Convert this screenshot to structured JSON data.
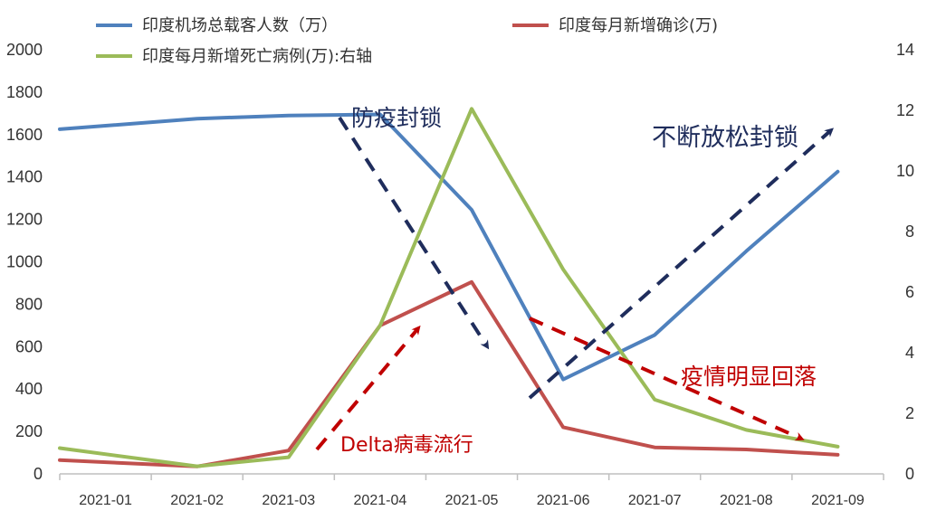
{
  "chart_data": {
    "type": "line",
    "categories": [
      "2021-01",
      "2021-02",
      "2021-03",
      "2021-04",
      "2021-05",
      "2021-06",
      "2021-07",
      "2021-08",
      "2021-09"
    ],
    "y_left": {
      "ylim": [
        0,
        2000
      ],
      "ticks": [
        "0",
        "200",
        "400",
        "600",
        "800",
        "1000",
        "1200",
        "1400",
        "1600",
        "1800",
        "2000"
      ]
    },
    "y_right": {
      "ylim": [
        0,
        14
      ],
      "ticks": [
        "0",
        "2",
        "4",
        "6",
        "8",
        "10",
        "12",
        "14"
      ]
    },
    "grid": false,
    "legend_position": "top",
    "series": [
      {
        "name": "印度机场总载客人数（万）",
        "axis": "left",
        "color": "#4F81BD",
        "values": [
          1625,
          1675,
          1690,
          1695,
          1245,
          445,
          655,
          1050,
          1425
        ]
      },
      {
        "name": "印度每月新增确诊(万)",
        "axis": "left",
        "color": "#C0504D",
        "values": [
          65,
          35,
          110,
          700,
          905,
          220,
          125,
          115,
          90
        ]
      },
      {
        "name": "印度每月新增死亡病例(万):右轴",
        "axis": "right",
        "color": "#9BBB59",
        "values": [
          0.85,
          0.25,
          0.55,
          4.9,
          12.05,
          6.75,
          2.45,
          1.45,
          0.9
        ]
      }
    ],
    "annotations": [
      {
        "text": "防疫封锁",
        "color": "#1F2D5C"
      },
      {
        "text": "不断放松封锁",
        "color": "#1F2D5C"
      },
      {
        "text": "Delta病毒流行",
        "color": "#C00000"
      },
      {
        "text": "疫情明显回落",
        "color": "#C00000"
      }
    ]
  }
}
